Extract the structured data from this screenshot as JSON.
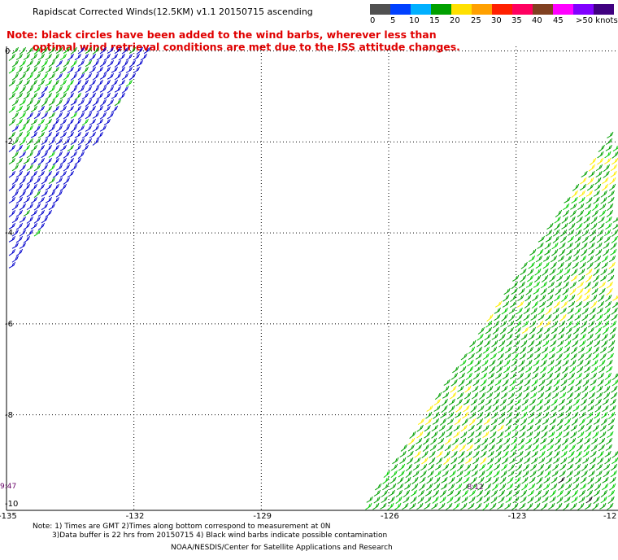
{
  "title": "Rapidscat Corrected Winds(12.5KM) v1.1 20150715 ascending",
  "legend": {
    "colors": [
      "#505050",
      "#0040ff",
      "#00b0ff",
      "#00a000",
      "#ffe000",
      "#ffa000",
      "#ff2000",
      "#ff0060",
      "#804020",
      "#ff00ff",
      "#8000ff",
      "#400080"
    ],
    "labels": [
      "0",
      "5",
      "10",
      "15",
      "20",
      "25",
      "30",
      "35",
      "40",
      "45",
      ">50 knots"
    ]
  },
  "note": {
    "line1": "Note: black circles have been added to the wind barbs, wherever less than",
    "line2": "optimal wind retrieval conditions are met due to the ISS attitude changes."
  },
  "map": {
    "lat_labels": [
      "0",
      "-2",
      "-4",
      "-6",
      "-8",
      "-10"
    ],
    "lon_labels": [
      "-135",
      "-132",
      "-129",
      "-126",
      "-123",
      "-12"
    ],
    "lon_range": [
      -135,
      -120.6
    ],
    "lat_range": [
      -10.1,
      0.1
    ],
    "timestamps": [
      {
        "text": "9:47",
        "lon": -135,
        "lat": -9.6
      },
      {
        "text": "8:12",
        "lon": -124.0,
        "lat": -9.62
      }
    ],
    "barb_colors": {
      "blue": "#0000cc",
      "green": "#00a000",
      "lime": "#00cc00",
      "yellow": "#ffee00",
      "black": "#000000"
    }
  },
  "footer": {
    "line1": "Note: 1) Times are GMT 2)Times along bottom correspond to measurement at 0N",
    "line2": "3)Data buffer is 22 hrs from 20150715 4) Black wind barbs indicate possible contamination",
    "line3": "NOAA/NESDIS/Center for Satellite Applications and Research"
  }
}
